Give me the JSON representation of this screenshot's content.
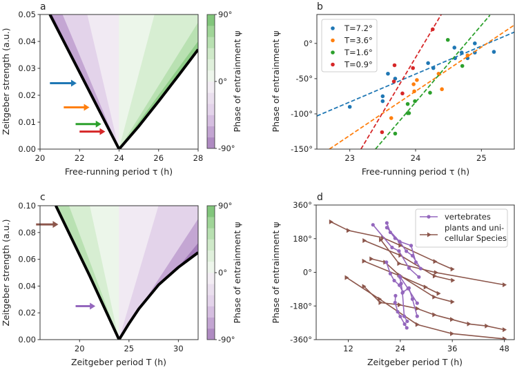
{
  "chart_data": [
    {
      "panel": "a",
      "type": "heatmap",
      "xlabel": "Free-running period τ (h)",
      "ylabel": "Zeitgeber strength (a.u.)",
      "colorbar_label": "Phase of entrainment ψ",
      "colorbar_ticks": [
        "90°",
        "0°",
        "-90°"
      ],
      "colorbar_range": [
        -90,
        90
      ],
      "xlim": [
        20,
        28
      ],
      "ylim": [
        0,
        0.05
      ],
      "xticks": [
        20,
        22,
        24,
        26,
        28
      ],
      "xtick_labels": [
        "20",
        "22",
        "24",
        "26",
        "28"
      ],
      "yticks": [
        0,
        0.01,
        0.02,
        0.03,
        0.04,
        0.05
      ],
      "ytick_labels": [
        "0.00",
        "0.01",
        "0.02",
        "0.03",
        "0.04",
        "0.05"
      ],
      "boundary_left": [
        [
          20.5,
          0.05
        ],
        [
          24,
          0
        ]
      ],
      "boundary_right": [
        [
          24,
          0
        ],
        [
          25,
          0.0085
        ],
        [
          26,
          0.0178
        ],
        [
          27,
          0.0273
        ],
        [
          28,
          0.037
        ]
      ],
      "bands": [
        {
          "color": "#a27bb8",
          "poly": [
            [
              24,
              0
            ],
            [
              20.5,
              0.05
            ],
            [
              20.62,
              0.05
            ]
          ]
        },
        {
          "color": "#c4a6d3",
          "poly": [
            [
              24,
              0
            ],
            [
              20.62,
              0.05
            ],
            [
              21.15,
              0.05
            ]
          ]
        },
        {
          "color": "#e3d3ea",
          "poly": [
            [
              24,
              0
            ],
            [
              21.15,
              0.05
            ],
            [
              22.4,
              0.05
            ]
          ]
        },
        {
          "color": "#f1eaf3",
          "poly": [
            [
              24,
              0
            ],
            [
              22.4,
              0.05
            ],
            [
              24,
              0.05
            ]
          ]
        },
        {
          "color": "#ecf6ea",
          "poly": [
            [
              24,
              0
            ],
            [
              24,
              0.05
            ],
            [
              25.8,
              0.05
            ]
          ]
        },
        {
          "color": "#d7eed2",
          "poly": [
            [
              24,
              0
            ],
            [
              25.8,
              0.05
            ],
            [
              28,
              0.05
            ],
            [
              28,
              0.047
            ]
          ]
        },
        {
          "color": "#b9e1b2",
          "poly": [
            [
              24,
              0
            ],
            [
              28,
              0.047
            ],
            [
              28,
              0.04
            ]
          ]
        },
        {
          "color": "#8fcd88",
          "poly": [
            [
              24,
              0
            ],
            [
              28,
              0.04
            ],
            [
              28,
              0.036
            ]
          ]
        }
      ],
      "arrows": [
        {
          "color": "#1f77b4",
          "from": [
            20.5,
            0.0245
          ],
          "to": [
            21.85,
            0.0245
          ]
        },
        {
          "color": "#ff7f0e",
          "from": [
            21.2,
            0.0155
          ],
          "to": [
            22.5,
            0.0155
          ]
        },
        {
          "color": "#2ca02c",
          "from": [
            21.8,
            0.0093
          ],
          "to": [
            23.1,
            0.0093
          ]
        },
        {
          "color": "#d62728",
          "from": [
            22.0,
            0.0065
          ],
          "to": [
            23.3,
            0.0065
          ]
        }
      ]
    },
    {
      "panel": "b",
      "type": "scatter",
      "xlabel": "Free-running period τ (h)",
      "ylabel": "Phase of entrainment ψ",
      "xlim": [
        22.5,
        25.5
      ],
      "ylim": [
        -150,
        41
      ],
      "xticks": [
        23,
        24,
        25
      ],
      "xtick_labels": [
        "23",
        "24",
        "25"
      ],
      "yticks": [
        0,
        -50,
        -100,
        -150
      ],
      "ytick_labels": [
        "0°",
        "-50°",
        "-100°",
        "-150°"
      ],
      "legend_position": "top-left",
      "series": [
        {
          "name": "T=7.2°",
          "color": "#1f77b4",
          "points": [
            [
              23.0,
              -90
            ],
            [
              23.5,
              -75
            ],
            [
              23.5,
              -82
            ],
            [
              23.58,
              -43
            ],
            [
              23.69,
              -50
            ],
            [
              24.19,
              -28
            ],
            [
              24.27,
              -35
            ],
            [
              24.59,
              -6
            ],
            [
              24.6,
              -21
            ],
            [
              24.7,
              -13
            ],
            [
              24.79,
              -21
            ],
            [
              24.9,
              0
            ],
            [
              24.9,
              -13
            ],
            [
              25.19,
              -12
            ]
          ],
          "fit": [
            [
              22.5,
              -103
            ],
            [
              25.5,
              16
            ]
          ]
        },
        {
          "name": "T=3.6°",
          "color": "#ff7f0e",
          "points": [
            [
              23.63,
              -106
            ],
            [
              23.97,
              -58
            ],
            [
              24.02,
              -52
            ],
            [
              23.98,
              -68
            ],
            [
              24.35,
              -43
            ],
            [
              24.4,
              -65
            ],
            [
              24.79,
              -17
            ]
          ],
          "fit": [
            [
              22.69,
              -150
            ],
            [
              25.5,
              26
            ]
          ]
        },
        {
          "name": "T=1.6°",
          "color": "#2ca02c",
          "points": [
            [
              24.49,
              5
            ],
            [
              24.71,
              -32
            ],
            [
              24.22,
              -70
            ],
            [
              23.99,
              -82
            ],
            [
              23.88,
              -86
            ],
            [
              23.88,
              -99
            ],
            [
              23.9,
              -99
            ],
            [
              23.69,
              -128
            ]
          ],
          "fit": [
            [
              23.39,
              -150
            ],
            [
              25.13,
              40
            ]
          ]
        },
        {
          "name": "T=0.9°",
          "color": "#d62728",
          "points": [
            [
              24.26,
              20
            ],
            [
              23.68,
              -31
            ],
            [
              23.96,
              -35
            ],
            [
              23.67,
              -54
            ],
            [
              23.8,
              -71
            ],
            [
              23.49,
              -126
            ]
          ],
          "fit": [
            [
              23.17,
              -150
            ],
            [
              24.39,
              41
            ]
          ]
        }
      ]
    },
    {
      "panel": "c",
      "type": "heatmap",
      "xlabel": "Zeitgeber period T (h)",
      "ylabel": "Zeitgeber strength (a.u.)",
      "colorbar_label": "Phase of entrainment ψ",
      "colorbar_ticks": [
        "90°",
        "0°",
        "-90°"
      ],
      "colorbar_range": [
        -90,
        90
      ],
      "xlim": [
        16,
        32
      ],
      "ylim": [
        0,
        0.1
      ],
      "xticks": [
        20,
        25,
        30
      ],
      "xtick_labels": [
        "20",
        "25",
        "30"
      ],
      "yticks": [
        0,
        0.02,
        0.04,
        0.06,
        0.08,
        0.1
      ],
      "ytick_labels": [
        "0.00",
        "0.02",
        "0.04",
        "0.06",
        "0.08",
        "0.10"
      ],
      "boundary_left": [
        [
          17.6,
          0.1
        ],
        [
          21,
          0.048
        ],
        [
          24,
          0
        ]
      ],
      "boundary_right": [
        [
          24,
          0
        ],
        [
          25,
          0.012
        ],
        [
          26,
          0.023
        ],
        [
          28,
          0.041
        ],
        [
          30,
          0.054
        ],
        [
          32,
          0.065
        ]
      ],
      "bands": [
        {
          "color": "#8fcd88",
          "poly": [
            [
              24,
              0
            ],
            [
              17.5,
              0.1
            ],
            [
              17.75,
              0.1
            ]
          ]
        },
        {
          "color": "#b9e1b2",
          "poly": [
            [
              24,
              0
            ],
            [
              17.75,
              0.1
            ],
            [
              18.95,
              0.1
            ]
          ]
        },
        {
          "color": "#d7eed2",
          "poly": [
            [
              24,
              0
            ],
            [
              18.95,
              0.1
            ],
            [
              21.05,
              0.1
            ]
          ]
        },
        {
          "color": "#ecf6ea",
          "poly": [
            [
              24,
              0
            ],
            [
              21.05,
              0.1
            ],
            [
              24,
              0.1
            ]
          ]
        },
        {
          "color": "#f1eaf3",
          "poly": [
            [
              24,
              0
            ],
            [
              24,
              0.1
            ],
            [
              28,
              0.1
            ]
          ]
        },
        {
          "color": "#e3d3ea",
          "poly": [
            [
              24,
              0
            ],
            [
              28,
              0.1
            ],
            [
              32,
              0.1
            ],
            [
              32,
              0.09
            ]
          ]
        },
        {
          "color": "#c4a6d3",
          "poly": [
            [
              24,
              0
            ],
            [
              32,
              0.09
            ],
            [
              32,
              0.072
            ]
          ]
        },
        {
          "color": "#a27bb8",
          "poly": [
            [
              24,
              0
            ],
            [
              32,
              0.072
            ],
            [
              32,
              0.064
            ]
          ]
        }
      ],
      "arrows": [
        {
          "color": "#8c564b",
          "from": [
            15.6,
            0.086
          ],
          "to": [
            17.85,
            0.086
          ]
        },
        {
          "color": "#9467bd",
          "from": [
            19.6,
            0.025
          ],
          "to": [
            21.6,
            0.025
          ]
        }
      ]
    },
    {
      "panel": "d",
      "type": "line",
      "xlabel": "Zeitgeber period T (h)",
      "ylabel": "Phase of entrainment ψ",
      "xlim": [
        4.6,
        50.3
      ],
      "ylim": [
        -360,
        360
      ],
      "xticks": [
        12,
        24,
        36,
        48
      ],
      "xtick_labels": [
        "12",
        "24",
        "36",
        "48"
      ],
      "yticks": [
        360,
        180,
        0,
        -180,
        -360
      ],
      "ytick_labels": [
        "360°",
        "180°",
        "0°",
        "-180°",
        "-360°"
      ],
      "legend_position": "top-right",
      "series": [
        {
          "name": "vertebrates",
          "color": "#9467bd",
          "marker": "circle",
          "lines": [
            [
              [
                17.7,
                254
              ],
              [
                22.1,
                133
              ],
              [
                23.7,
                114
              ],
              [
                26,
                23
              ],
              [
                28.3,
                -25
              ]
            ],
            [
              [
                20.9,
                264
              ],
              [
                21.7,
                214
              ],
              [
                22.8,
                182
              ],
              [
                23.9,
                163
              ],
              [
                25.4,
                113
              ],
              [
                26.8,
                89
              ],
              [
                28.7,
                20
              ]
            ],
            [
              [
                20.9,
                239
              ],
              [
                23.8,
                165
              ],
              [
                26.5,
                143
              ],
              [
                27.6,
                54
              ]
            ],
            [
              [
                20.8,
                54
              ],
              [
                21.7,
                -7
              ],
              [
                22.6,
                -44
              ],
              [
                23.8,
                -69
              ],
              [
                24.6,
                -106
              ],
              [
                26,
                -84
              ],
              [
                26.8,
                -143
              ],
              [
                27.9,
                -235
              ]
            ],
            [
              [
                22.9,
                -125
              ],
              [
                22.8,
                -162
              ],
              [
                23.4,
                -211
              ],
              [
                24,
                -236
              ],
              [
                25,
                -277
              ],
              [
                25.5,
                -297
              ]
            ],
            [
              [
                23.8,
                -20
              ],
              [
                24.2,
                -60
              ],
              [
                24.5,
                -110
              ],
              [
                24.9,
                -235
              ],
              [
                25.6,
                -262
              ]
            ],
            [
              [
                24,
                -26
              ],
              [
                25.8,
                -87
              ],
              [
                27.9,
                -165
              ]
            ]
          ]
        },
        {
          "name": "plants and uni-cellular Species",
          "name_lines": [
            "plants and uni-",
            "cellular Species"
          ],
          "color": "#8c564b",
          "marker": "triangle-right",
          "lines": [
            [
              [
                8,
                270
              ],
              [
                12,
                224
              ],
              [
                20,
                185
              ],
              [
                24,
                144
              ],
              [
                32,
                58
              ],
              [
                36,
                17
              ]
            ],
            [
              [
                15.7,
                170
              ],
              [
                24,
                91
              ],
              [
                31.9,
                -20
              ],
              [
                36.1,
                -43
              ]
            ],
            [
              [
                19.5,
                174
              ],
              [
                23.7,
                47
              ],
              [
                32.2,
                -1
              ],
              [
                48,
                -67
              ]
            ],
            [
              [
                15.6,
                60
              ],
              [
                24,
                -20
              ],
              [
                29.8,
                -79
              ],
              [
                32.8,
                -113
              ]
            ],
            [
              [
                17.3,
                72
              ],
              [
                20.5,
                54
              ],
              [
                23.7,
                -14
              ],
              [
                31.8,
                -132
              ],
              [
                36,
                -158
              ]
            ],
            [
              [
                11.6,
                -28
              ],
              [
                19.2,
                -143
              ],
              [
                27.9,
                -279
              ],
              [
                35.9,
                -328
              ],
              [
                48,
                -356
              ]
            ],
            [
              [
                15.6,
                -75
              ],
              [
                19.4,
                -162
              ],
              [
                23.8,
                -174
              ],
              [
                27.9,
                -194
              ],
              [
                31.8,
                -227
              ],
              [
                35.9,
                -252
              ],
              [
                39.8,
                -276
              ],
              [
                43.9,
                -287
              ],
              [
                48,
                -307
              ]
            ]
          ]
        }
      ]
    }
  ]
}
